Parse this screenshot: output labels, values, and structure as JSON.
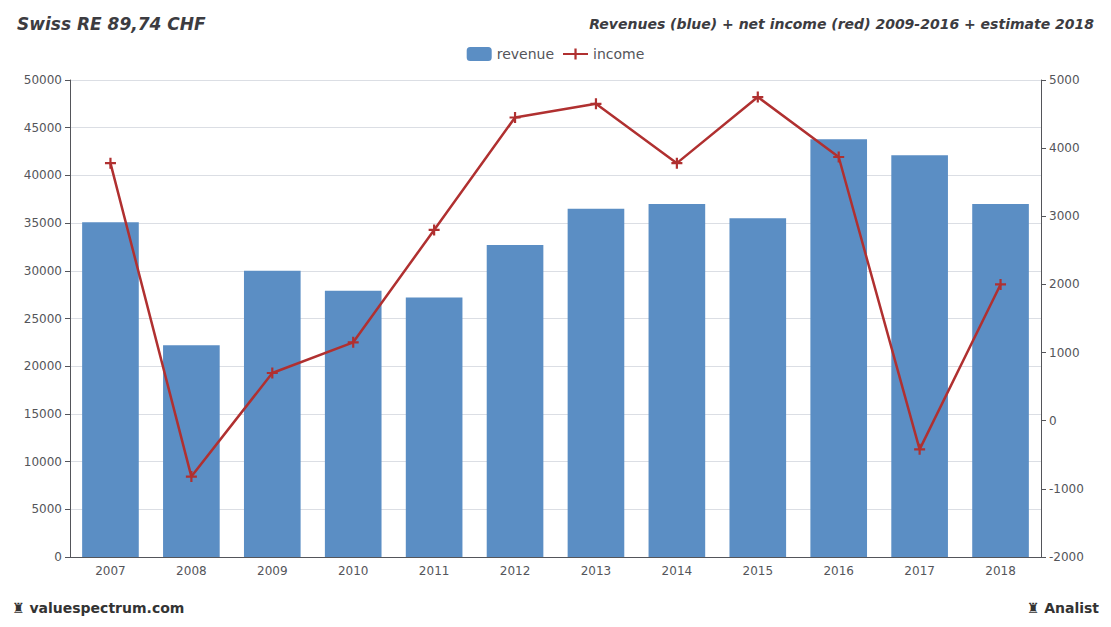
{
  "chart_data": {
    "type": "bar",
    "title": "Swiss RE 89,74 CHF",
    "subtitle": "Revenues (blue) + net income (red) 2009-2016 + estimate 2018",
    "annotations": [
      "♜ valuespectrum.com",
      "♜ Analist"
    ],
    "categories": [
      "2007",
      "2008",
      "2009",
      "2010",
      "2011",
      "2012",
      "2013",
      "2014",
      "2015",
      "2016",
      "2017",
      "2018"
    ],
    "series": [
      {
        "name": "revenue",
        "type": "bar",
        "color": "#5b8ec4",
        "values": [
          35100,
          22200,
          30000,
          27900,
          27200,
          32700,
          36500,
          37000,
          35500,
          43800,
          42100,
          37000
        ]
      },
      {
        "name": "income",
        "type": "line",
        "axis": "y2",
        "color": "#b03030",
        "marker": "plus",
        "values": [
          3780,
          -820,
          700,
          1150,
          2800,
          4450,
          4650,
          3780,
          4750,
          3870,
          -420,
          2000
        ]
      }
    ],
    "ylim": [
      0,
      50000
    ],
    "yticks": [
      0,
      5000,
      10000,
      15000,
      20000,
      25000,
      30000,
      35000,
      40000,
      45000,
      50000
    ],
    "y2lim": [
      -2000,
      5000
    ],
    "y2ticks": [
      -2000,
      -1000,
      0,
      1000,
      2000,
      3000,
      4000,
      5000
    ],
    "grid": true,
    "legend": "top"
  }
}
